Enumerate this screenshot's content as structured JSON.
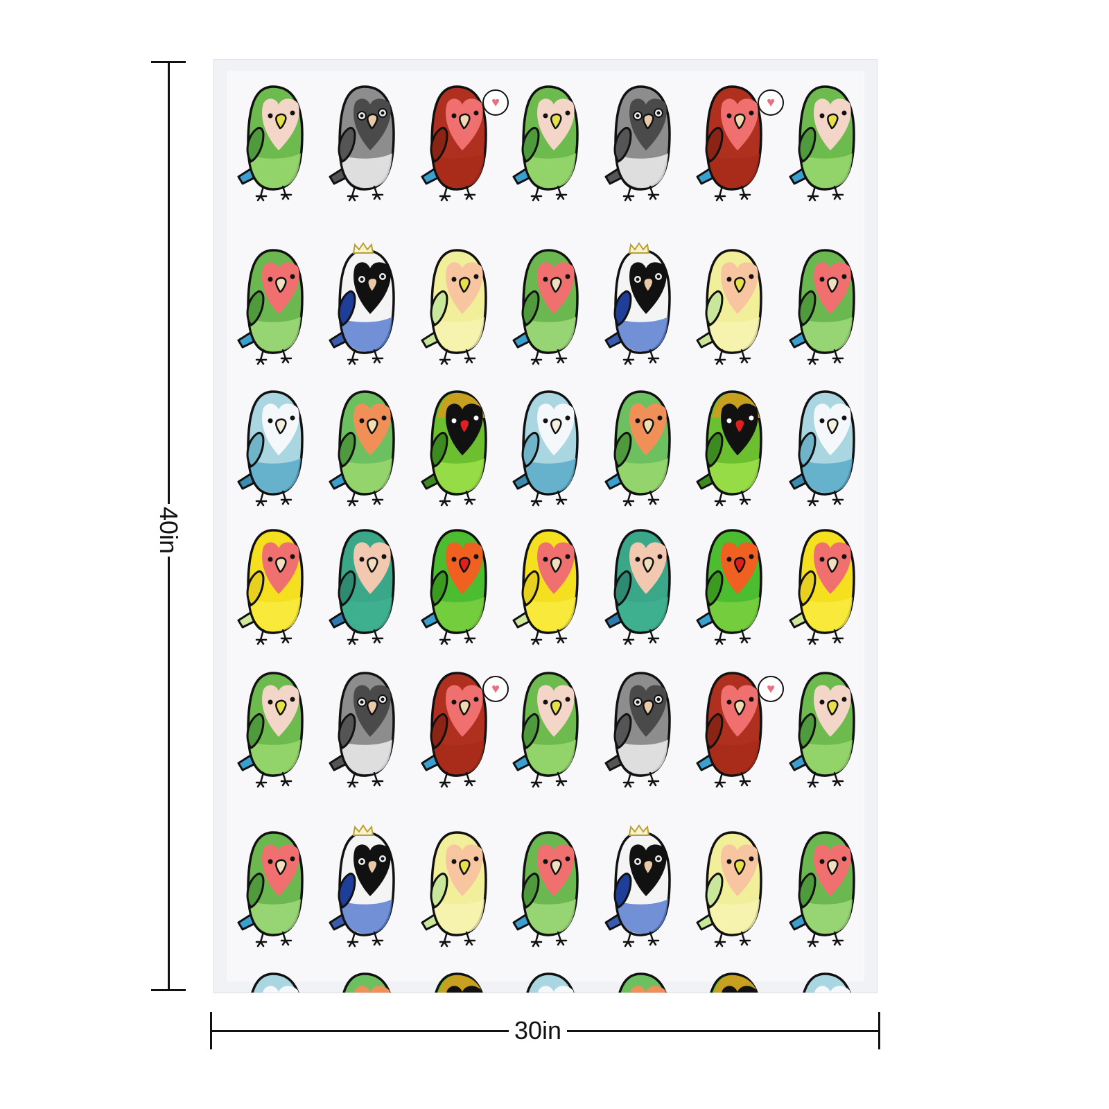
{
  "dimensions": {
    "height_label": "40in",
    "width_label": "30in"
  },
  "pattern": {
    "background": "#f1f2f5",
    "columns": 7,
    "row_types": [
      [
        "peach",
        "gray",
        "red"
      ],
      [
        "rosy",
        "masked_blue",
        "lutino"
      ],
      [
        "blue_white",
        "orange",
        "black_masked"
      ],
      [
        "yellow_rosy",
        "teal",
        "fischer"
      ],
      [
        "peach",
        "gray",
        "red"
      ],
      [
        "rosy",
        "masked_blue",
        "lutino"
      ],
      [
        "blue_white",
        "orange",
        "black_masked"
      ]
    ],
    "birds": {
      "peach": {
        "body": "#6dbb4f",
        "belly": "#9ad86e",
        "face": "#f3d6c8",
        "wing": "#4f9a3c",
        "tail": "#3aa0d0",
        "beak": "#e8e04a"
      },
      "gray": {
        "body": "#8d8d8d",
        "belly": "#ececec",
        "face": "#4a4a4a",
        "wing": "#555555",
        "tail": "#555555",
        "beak": "#e8c9a8",
        "ring": true
      },
      "red": {
        "body": "#b0301f",
        "belly": "#a82a1a",
        "face": "#f07070",
        "wing": "#8a2414",
        "tail": "#3aa0d0",
        "beak": "#f0d8b0",
        "bubble": true
      },
      "rosy": {
        "body": "#6cb850",
        "belly": "#9fd879",
        "face": "#f07070",
        "wing": "#4f9a3c",
        "tail": "#3aa0d0",
        "beak": "#f0e0c0"
      },
      "masked_blue": {
        "body": "#f4f4f4",
        "belly": "#5a7ed0",
        "face": "#111111",
        "wing": "#1f3e9a",
        "tail": "#3a5cb0",
        "beak": "#e8c9a8",
        "ring": true,
        "crown": true
      },
      "lutino": {
        "body": "#f2ef9a",
        "belly": "#f6f3b0",
        "face": "#f7c6a0",
        "wing": "#c9e79a",
        "tail": "#c9e79a",
        "beak": "#e8e04a"
      },
      "blue_white": {
        "body": "#a9d6e0",
        "belly": "#5aaac8",
        "face": "#f4f8fa",
        "wing": "#6fb4c8",
        "tail": "#3a8cb0",
        "beak": "#f4f0e0"
      },
      "orange": {
        "body": "#6cc060",
        "belly": "#9ad86e",
        "face": "#f09058",
        "wing": "#4f9a3c",
        "tail": "#3aa0d0",
        "beak": "#f0e0b0"
      },
      "black_masked": {
        "body": "#6cc030",
        "belly": "#9ee04a",
        "face": "#111111",
        "wing": "#3c8a20",
        "tail": "#3c8a20",
        "beak": "#e02020",
        "head": "#c8a020"
      },
      "yellow_rosy": {
        "body": "#f5e020",
        "belly": "#f8ea40",
        "face": "#f07070",
        "wing": "#e8d020",
        "tail": "#cfe89a",
        "beak": "#f0e0c0"
      },
      "teal": {
        "body": "#3aa888",
        "belly": "#40b090",
        "face": "#f2c8b0",
        "wing": "#2e8a70",
        "tail": "#2e7ab0",
        "beak": "#f0e0c0"
      },
      "fischer": {
        "body": "#4cbc30",
        "belly": "#7ad040",
        "face": "#f06020",
        "wing": "#3c9a20",
        "tail": "#3aa0d0",
        "beak": "#e02020"
      }
    }
  }
}
